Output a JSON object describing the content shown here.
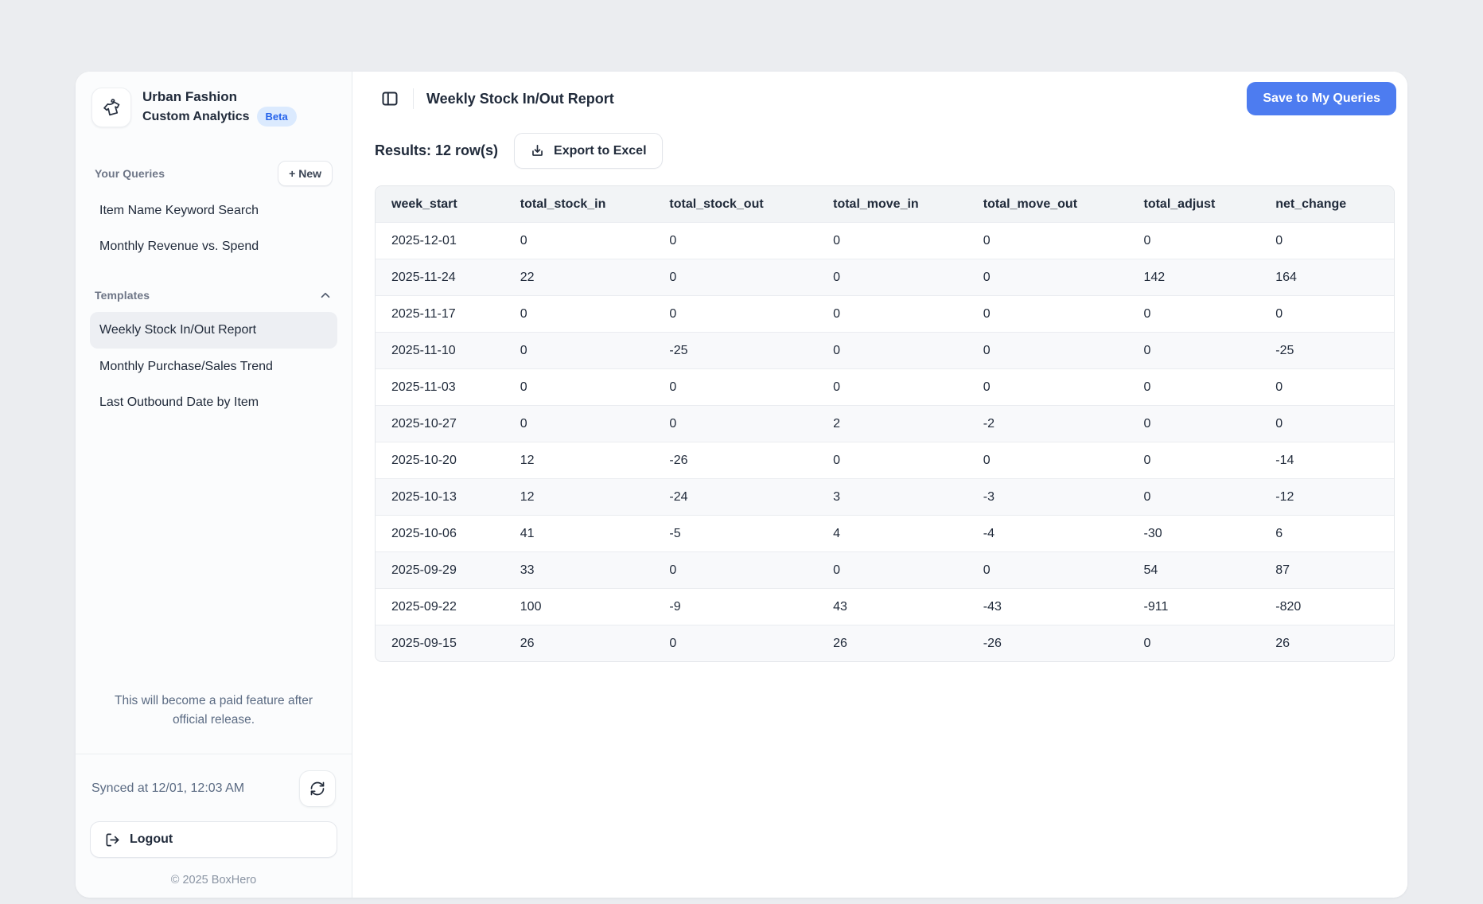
{
  "sidebar": {
    "workspace_name": "Urban Fashion",
    "app_title": "Custom Analytics",
    "beta_label": "Beta",
    "your_queries_label": "Your Queries",
    "new_button_label": "+ New",
    "queries": [
      "Item Name Keyword Search",
      "Monthly Revenue vs. Spend"
    ],
    "templates_label": "Templates",
    "templates": [
      {
        "label": "Weekly Stock In/Out Report",
        "active": true
      },
      {
        "label": "Monthly Purchase/Sales Trend",
        "active": false
      },
      {
        "label": "Last Outbound Date by Item",
        "active": false
      }
    ],
    "paid_note": "This will become a paid feature after official release.",
    "synced_label": "Synced at 12/01, 12:03 AM",
    "logout_label": "Logout",
    "copyright": "© 2025 BoxHero"
  },
  "main": {
    "title": "Weekly Stock In/Out Report",
    "save_button_label": "Save to My Queries",
    "results_label": "Results: 12 row(s)",
    "export_button_label": "Export to Excel"
  },
  "table": {
    "columns": [
      "week_start",
      "total_stock_in",
      "total_stock_out",
      "total_move_in",
      "total_move_out",
      "total_adjust",
      "net_change"
    ],
    "rows": [
      [
        "2025-12-01",
        "0",
        "0",
        "0",
        "0",
        "0",
        "0"
      ],
      [
        "2025-11-24",
        "22",
        "0",
        "0",
        "0",
        "142",
        "164"
      ],
      [
        "2025-11-17",
        "0",
        "0",
        "0",
        "0",
        "0",
        "0"
      ],
      [
        "2025-11-10",
        "0",
        "-25",
        "0",
        "0",
        "0",
        "-25"
      ],
      [
        "2025-11-03",
        "0",
        "0",
        "0",
        "0",
        "0",
        "0"
      ],
      [
        "2025-10-27",
        "0",
        "0",
        "2",
        "-2",
        "0",
        "0"
      ],
      [
        "2025-10-20",
        "12",
        "-26",
        "0",
        "0",
        "0",
        "-14"
      ],
      [
        "2025-10-13",
        "12",
        "-24",
        "3",
        "-3",
        "0",
        "-12"
      ],
      [
        "2025-10-06",
        "41",
        "-5",
        "4",
        "-4",
        "-30",
        "6"
      ],
      [
        "2025-09-29",
        "33",
        "0",
        "0",
        "0",
        "54",
        "87"
      ],
      [
        "2025-09-22",
        "100",
        "-9",
        "43",
        "-43",
        "-911",
        "-820"
      ],
      [
        "2025-09-15",
        "26",
        "0",
        "26",
        "-26",
        "0",
        "26"
      ]
    ]
  },
  "icons": {
    "logo": "tshirt-logo-icon",
    "collapse": "chevron-up-icon",
    "sync": "refresh-icon",
    "logout": "logout-icon",
    "panel": "panel-toggle-icon",
    "export": "download-icon"
  },
  "colors": {
    "accent": "#4d7cf0",
    "accent_text": "#ffffff",
    "beta_bg": "#dbeafe",
    "beta_text": "#2563eb",
    "text_dark": "#212b3b",
    "text_gray": "#6e7687",
    "text_muted_blue": "#5b6b83",
    "page_bg": "#ebedf0",
    "sidebar_bg": "#fbfcfd",
    "border": "#e7eaee",
    "table_header_bg": "#f2f4f6",
    "row_alt_bg": "#f8f9fb",
    "selected_item_bg": "#edeff3"
  }
}
